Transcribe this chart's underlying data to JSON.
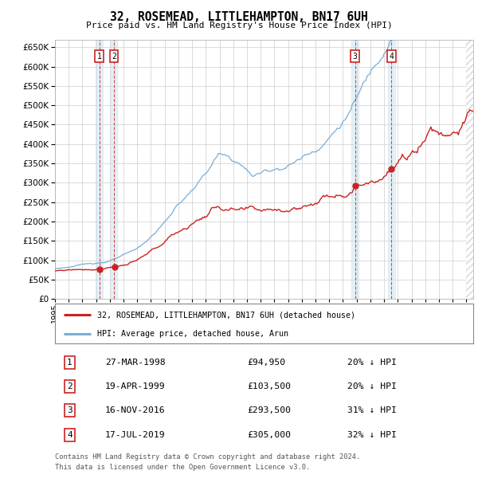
{
  "title": "32, ROSEMEAD, LITTLEHAMPTON, BN17 6UH",
  "subtitle": "Price paid vs. HM Land Registry's House Price Index (HPI)",
  "ylim": [
    0,
    670000
  ],
  "yticks": [
    0,
    50000,
    100000,
    150000,
    200000,
    250000,
    300000,
    350000,
    400000,
    450000,
    500000,
    550000,
    600000,
    650000
  ],
  "xlim_start": 1995.0,
  "xlim_end": 2025.5,
  "legend_line1": "32, ROSEMEAD, LITTLEHAMPTON, BN17 6UH (detached house)",
  "legend_line2": "HPI: Average price, detached house, Arun",
  "transactions": [
    {
      "num": 1,
      "date": "27-MAR-1998",
      "price": 94950,
      "pct": "20% ↓ HPI",
      "year": 1998.23
    },
    {
      "num": 2,
      "date": "19-APR-1999",
      "price": 103500,
      "pct": "20% ↓ HPI",
      "year": 1999.3
    },
    {
      "num": 3,
      "date": "16-NOV-2016",
      "price": 293500,
      "pct": "31% ↓ HPI",
      "year": 2016.88
    },
    {
      "num": 4,
      "date": "17-JUL-2019",
      "price": 305000,
      "pct": "32% ↓ HPI",
      "year": 2019.54
    }
  ],
  "footnote1": "Contains HM Land Registry data © Crown copyright and database right 2024.",
  "footnote2": "This data is licensed under the Open Government Licence v3.0.",
  "hpi_color": "#7aadd4",
  "price_color": "#cc2222",
  "bg_color": "#ffffff",
  "grid_color": "#cccccc"
}
